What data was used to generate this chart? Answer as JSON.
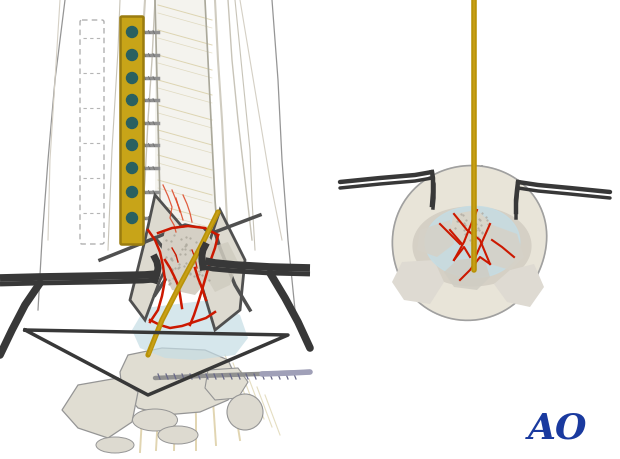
{
  "bg": "#ffffff",
  "ao_color": "#1a3a9f",
  "plate_fill": "#c8a418",
  "plate_edge": "#9a7c10",
  "plate_hole": "#2a6060",
  "bone_fill": "#e2ddd0",
  "bone_light": "#edeae0",
  "bone_stipple": "#d0ccc0",
  "cartilage": "#c5dde5",
  "frac_red": "#cc1800",
  "frac_light": "#dd4422",
  "wire_gold": "#b89208",
  "wire_gold2": "#d4aa20",
  "tissue_tan": "#d8c898",
  "tissue_tan2": "#ccc090",
  "gray_line": "#959595",
  "gray_dark": "#505050",
  "gray_mid": "#787878",
  "retractor": "#383838",
  "screw_col": "#8888a0",
  "bone_outline": "#aaa89a"
}
